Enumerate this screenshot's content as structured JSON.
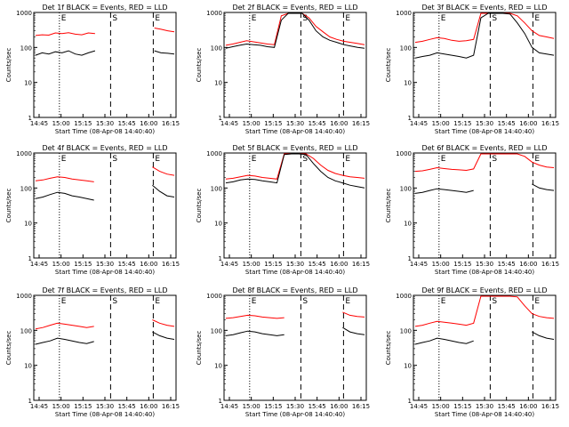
{
  "chart_data": [
    {
      "type": "line",
      "title": "Det 1f BLACK = Events, RED = LLD",
      "xlabel": "Start Time (08-Apr-08 14:40:40)",
      "ylabel": "Counts/sec",
      "yscale": "log",
      "ylim": [
        1,
        1000
      ],
      "x_tick_labels": [
        "14:45",
        "15:00",
        "15:15",
        "15:30",
        "15:45",
        "16:00",
        "16:15"
      ],
      "y_tick_labels": [
        "1",
        "10",
        "100",
        "1000"
      ],
      "markers": [
        {
          "label": "E",
          "style": "dotted"
        },
        {
          "label": "S",
          "style": "dashed"
        },
        {
          "label": "E",
          "style": "dashed"
        }
      ],
      "series": [
        {
          "color": "#ff0000",
          "values": [
            220,
            230,
            225,
            260,
            250,
            265,
            240,
            230,
            260,
            250,
            0,
            0,
            0,
            0,
            0,
            0,
            0,
            0,
            360,
            330,
            300,
            280
          ]
        },
        {
          "color": "#000000",
          "values": [
            60,
            70,
            65,
            75,
            70,
            80,
            65,
            60,
            70,
            80,
            0,
            0,
            0,
            0,
            0,
            0,
            0,
            0,
            80,
            70,
            68,
            65
          ]
        }
      ]
    },
    {
      "type": "line",
      "title": "Det 2f BLACK = Events, RED = LLD",
      "xlabel": "Start Time (08-Apr-08 14:40:40)",
      "ylabel": "Counts/sec",
      "yscale": "log",
      "ylim": [
        1,
        1000
      ],
      "x_tick_labels": [
        "14:45",
        "15:00",
        "15:15",
        "15:30",
        "15:45",
        "16:00",
        "16:15"
      ],
      "y_tick_labels": [
        "1",
        "10",
        "100",
        "1000"
      ],
      "markers": [
        {
          "label": "E",
          "style": "dotted"
        },
        {
          "label": "S",
          "style": "dashed"
        },
        {
          "label": "E",
          "style": "dashed"
        }
      ],
      "series": [
        {
          "color": "#ff0000",
          "values": [
            115,
            125,
            140,
            155,
            145,
            135,
            125,
            120,
            800,
            1000,
            1000,
            1000,
            700,
            400,
            280,
            200,
            170,
            150,
            140,
            130,
            120
          ]
        },
        {
          "color": "#000000",
          "values": [
            95,
            105,
            115,
            125,
            120,
            115,
            105,
            100,
            600,
            1000,
            1000,
            1000,
            600,
            300,
            200,
            160,
            140,
            120,
            110,
            100,
            95
          ]
        }
      ]
    },
    {
      "type": "line",
      "title": "Det 3f BLACK = Events, RED = LLD",
      "xlabel": "Start Time (08-Apr-08 14:40:40)",
      "ylabel": "Counts/sec",
      "yscale": "log",
      "ylim": [
        1,
        1000
      ],
      "x_tick_labels": [
        "14:45",
        "15:00",
        "15:15",
        "15:30",
        "15:45",
        "16:00",
        "16:15"
      ],
      "y_tick_labels": [
        "1",
        "10",
        "100",
        "1000"
      ],
      "markers": [
        {
          "label": "E",
          "style": "dotted"
        },
        {
          "label": "S",
          "style": "dashed"
        },
        {
          "label": "E",
          "style": "dashed"
        }
      ],
      "series": [
        {
          "color": "#ff0000",
          "values": [
            140,
            150,
            170,
            190,
            180,
            160,
            150,
            155,
            170,
            1000,
            1000,
            1000,
            1000,
            1000,
            800,
            500,
            300,
            220,
            200,
            180
          ]
        },
        {
          "color": "#000000",
          "values": [
            50,
            55,
            60,
            70,
            65,
            60,
            55,
            50,
            60,
            700,
            1000,
            1000,
            1000,
            900,
            500,
            250,
            100,
            70,
            65,
            60
          ]
        }
      ]
    },
    {
      "type": "line",
      "title": "Det 4f BLACK = Events, RED = LLD",
      "xlabel": "Start Time (08-Apr-08 14:40:40)",
      "ylabel": "Counts/sec",
      "yscale": "log",
      "ylim": [
        1,
        1000
      ],
      "x_tick_labels": [
        "14:45",
        "15:00",
        "15:15",
        "15:30",
        "15:45",
        "16:00",
        "16:15"
      ],
      "y_tick_labels": [
        "1",
        "10",
        "100",
        "1000"
      ],
      "markers": [
        {
          "label": "E",
          "style": "dotted"
        },
        {
          "label": "S",
          "style": "dashed"
        },
        {
          "label": "E",
          "style": "dashed"
        }
      ],
      "series": [
        {
          "color": "#ff0000",
          "values": [
            160,
            170,
            190,
            210,
            200,
            180,
            170,
            160,
            150,
            0,
            0,
            0,
            0,
            0,
            0,
            0,
            400,
            300,
            250,
            230
          ]
        },
        {
          "color": "#000000",
          "values": [
            50,
            55,
            65,
            75,
            70,
            60,
            55,
            50,
            45,
            0,
            0,
            0,
            0,
            0,
            0,
            0,
            120,
            80,
            60,
            55
          ]
        }
      ]
    },
    {
      "type": "line",
      "title": "Det 5f BLACK = Events, RED = LLD",
      "xlabel": "Start Time (08-Apr-08 14:40:40)",
      "ylabel": "Counts/sec",
      "yscale": "log",
      "ylim": [
        1,
        1000
      ],
      "x_tick_labels": [
        "14:45",
        "15:00",
        "15:15",
        "15:30",
        "15:45",
        "16:00",
        "16:15"
      ],
      "y_tick_labels": [
        "1",
        "10",
        "100",
        "1000"
      ],
      "markers": [
        {
          "label": "E",
          "style": "dotted"
        },
        {
          "label": "S",
          "style": "dashed"
        },
        {
          "label": "E",
          "style": "dashed"
        }
      ],
      "series": [
        {
          "color": "#ff0000",
          "values": [
            180,
            190,
            210,
            230,
            220,
            200,
            190,
            180,
            1000,
            1000,
            1000,
            1000,
            700,
            450,
            320,
            260,
            230,
            210,
            200,
            190
          ]
        },
        {
          "color": "#000000",
          "values": [
            140,
            150,
            170,
            180,
            175,
            160,
            150,
            140,
            900,
            1000,
            1000,
            900,
            500,
            300,
            200,
            160,
            140,
            120,
            110,
            100
          ]
        }
      ]
    },
    {
      "type": "line",
      "title": "Det 6f BLACK = Events, RED = LLD",
      "xlabel": "Start Time (08-Apr-08 14:40:40)",
      "ylabel": "Counts/sec",
      "yscale": "log",
      "ylim": [
        1,
        1000
      ],
      "x_tick_labels": [
        "14:45",
        "15:00",
        "15:15",
        "15:30",
        "15:45",
        "16:00",
        "16:15"
      ],
      "y_tick_labels": [
        "1",
        "10",
        "100",
        "1000"
      ],
      "markers": [
        {
          "label": "E",
          "style": "dotted"
        },
        {
          "label": "S",
          "style": "dashed"
        },
        {
          "label": "E",
          "style": "dashed"
        }
      ],
      "series": [
        {
          "color": "#ff0000",
          "values": [
            300,
            310,
            340,
            380,
            360,
            340,
            330,
            320,
            350,
            1000,
            1000,
            1000,
            1000,
            1000,
            1000,
            800,
            550,
            450,
            400,
            380
          ]
        },
        {
          "color": "#000000",
          "values": [
            70,
            75,
            85,
            95,
            90,
            85,
            80,
            75,
            85,
            0,
            0,
            0,
            0,
            0,
            0,
            0,
            130,
            100,
            90,
            85
          ]
        }
      ]
    },
    {
      "type": "line",
      "title": "Det 7f BLACK = Events, RED = LLD",
      "xlabel": "Start Time (08-Apr-08 14:40:40)",
      "ylabel": "Counts/sec",
      "yscale": "log",
      "ylim": [
        1,
        1000
      ],
      "x_tick_labels": [
        "14:45",
        "15:00",
        "15:15",
        "15:30",
        "15:45",
        "16:00",
        "16:15"
      ],
      "y_tick_labels": [
        "1",
        "10",
        "100",
        "1000"
      ],
      "markers": [
        {
          "label": "E",
          "style": "dotted"
        },
        {
          "label": "S",
          "style": "dashed"
        },
        {
          "label": "E",
          "style": "dashed"
        }
      ],
      "series": [
        {
          "color": "#ff0000",
          "values": [
            110,
            120,
            140,
            160,
            150,
            140,
            130,
            120,
            130,
            0,
            0,
            0,
            0,
            0,
            0,
            0,
            200,
            160,
            140,
            130
          ]
        },
        {
          "color": "#000000",
          "values": [
            40,
            45,
            50,
            60,
            55,
            50,
            45,
            42,
            48,
            0,
            0,
            0,
            0,
            0,
            0,
            0,
            90,
            70,
            60,
            55
          ]
        }
      ]
    },
    {
      "type": "line",
      "title": "Det 8f BLACK = Events, RED = LLD",
      "xlabel": "Start Time (08-Apr-08 14:40:40)",
      "ylabel": "Counts/sec",
      "yscale": "log",
      "ylim": [
        1,
        1000
      ],
      "x_tick_labels": [
        "14:45",
        "15:00",
        "15:15",
        "15:30",
        "15:45",
        "16:00",
        "16:15"
      ],
      "y_tick_labels": [
        "1",
        "10",
        "100",
        "1000"
      ],
      "markers": [
        {
          "label": "E",
          "style": "dotted"
        },
        {
          "label": "S",
          "style": "dashed"
        },
        {
          "label": "E",
          "style": "dashed"
        }
      ],
      "series": [
        {
          "color": "#ff0000",
          "values": [
            220,
            230,
            250,
            270,
            260,
            240,
            230,
            220,
            230,
            0,
            0,
            0,
            0,
            0,
            0,
            0,
            330,
            270,
            250,
            240
          ]
        },
        {
          "color": "#000000",
          "values": [
            70,
            75,
            85,
            95,
            90,
            80,
            75,
            70,
            75,
            0,
            0,
            0,
            0,
            0,
            0,
            0,
            120,
            90,
            80,
            75
          ]
        }
      ]
    },
    {
      "type": "line",
      "title": "Det 9f BLACK = Events, RED = LLD",
      "xlabel": "Start Time (08-Apr-08 14:40:40)",
      "ylabel": "Counts/sec",
      "yscale": "log",
      "ylim": [
        1,
        1000
      ],
      "x_tick_labels": [
        "14:45",
        "15:00",
        "15:15",
        "15:30",
        "15:45",
        "16:00",
        "16:15"
      ],
      "y_tick_labels": [
        "1",
        "10",
        "100",
        "1000"
      ],
      "markers": [
        {
          "label": "E",
          "style": "dotted"
        },
        {
          "label": "S",
          "style": "dashed"
        },
        {
          "label": "E",
          "style": "dashed"
        }
      ],
      "series": [
        {
          "color": "#ff0000",
          "values": [
            130,
            140,
            160,
            180,
            170,
            160,
            150,
            140,
            160,
            1000,
            1000,
            1000,
            1000,
            1000,
            900,
            500,
            300,
            250,
            230,
            220
          ]
        },
        {
          "color": "#000000",
          "values": [
            40,
            45,
            50,
            60,
            55,
            50,
            45,
            42,
            50,
            0,
            0,
            0,
            0,
            0,
            0,
            0,
            90,
            70,
            60,
            55
          ]
        }
      ]
    }
  ]
}
